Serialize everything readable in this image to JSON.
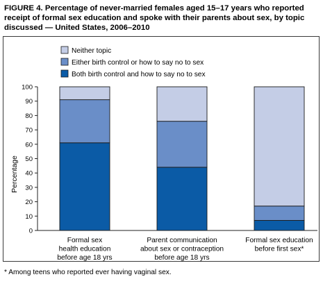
{
  "figure": {
    "title": "FIGURE 4. Percentage of never-married females aged 15–17 years who reported receipt of formal sex education and spoke with their parents about sex, by topic discussed — United States, 2006–2010",
    "footnote": "* Among teens who reported ever having vaginal sex."
  },
  "colors": {
    "neither": "#c4cde6",
    "either": "#6a8ec8",
    "both": "#0b5ba6",
    "outline": "#1a1a1a"
  },
  "chart_data": {
    "type": "bar",
    "stacked": true,
    "ylabel": "Percentage",
    "ylim": [
      0,
      100
    ],
    "yticks": [
      0,
      10,
      20,
      30,
      40,
      50,
      60,
      70,
      80,
      90,
      100
    ],
    "legend_position": "top-left",
    "categories": [
      [
        "Formal sex",
        "health education",
        "before age 18 yrs"
      ],
      [
        "Parent communication",
        "about sex or contraception",
        "before age 18 yrs"
      ],
      [
        "Formal sex education",
        "before first sex*"
      ]
    ],
    "series": [
      {
        "name": "Both birth control and how to say no to sex",
        "color_key": "both",
        "values": [
          61,
          44,
          7
        ]
      },
      {
        "name": "Either birth control or how to say no to sex",
        "color_key": "either",
        "values": [
          30,
          32,
          10
        ]
      },
      {
        "name": "Neither topic",
        "color_key": "neither",
        "values": [
          9,
          24,
          83
        ]
      }
    ],
    "legend_order": [
      2,
      1,
      0
    ]
  }
}
